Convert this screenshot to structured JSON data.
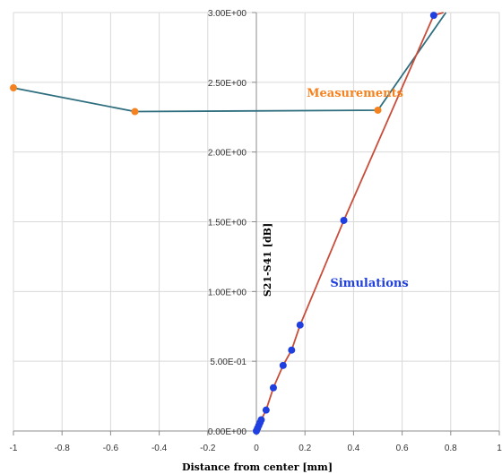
{
  "chart_data": {
    "type": "scatter",
    "xlabel": "Distance from center [mm]",
    "ylabel": "S21-S41 [dB]",
    "xlim": [
      -1,
      1
    ],
    "ylim": [
      0,
      3
    ],
    "x_ticks": [
      {
        "value": -1,
        "label": "-1"
      },
      {
        "value": -0.8,
        "label": "-0.8"
      },
      {
        "value": -0.6,
        "label": "-0.6"
      },
      {
        "value": -0.4,
        "label": "-0.4"
      },
      {
        "value": -0.2,
        "label": "-0.2"
      },
      {
        "value": 0,
        "label": "0"
      },
      {
        "value": 0.2,
        "label": "0.2"
      },
      {
        "value": 0.4,
        "label": "0.4"
      },
      {
        "value": 0.6,
        "label": "0.6"
      },
      {
        "value": 0.8,
        "label": "0.8"
      },
      {
        "value": 1,
        "label": "1"
      }
    ],
    "y_ticks": [
      {
        "value": 0,
        "label": "0.00E+00"
      },
      {
        "value": 0.5,
        "label": "5.00E-01"
      },
      {
        "value": 1.0,
        "label": "1.00E+00"
      },
      {
        "value": 1.5,
        "label": "1.50E+00"
      },
      {
        "value": 2.0,
        "label": "2.00E+00"
      },
      {
        "value": 2.5,
        "label": "2.50E+00"
      },
      {
        "value": 3.0,
        "label": "3.00E+00"
      }
    ],
    "grid": true,
    "series": [
      {
        "name": "Measurements",
        "color": "#f5821f",
        "line_color": "#2e6e7e",
        "x": [
          -1,
          -0.5,
          0.5,
          0.78
        ],
        "y": [
          2.46,
          2.29,
          2.3,
          3.0
        ],
        "marker_at": [
          true,
          true,
          true,
          false
        ]
      },
      {
        "name": "Simulations",
        "color": "#1f3fe0",
        "line_color": "#c94d3a",
        "x": [
          0,
          0.005,
          0.01,
          0.015,
          0.02,
          0.04,
          0.07,
          0.11,
          0.145,
          0.18,
          0.36,
          0.73,
          0.77
        ],
        "y": [
          0.0,
          0.02,
          0.04,
          0.06,
          0.08,
          0.15,
          0.31,
          0.47,
          0.58,
          0.76,
          1.51,
          2.98,
          3.0
        ],
        "marker_at": [
          true,
          true,
          true,
          true,
          true,
          true,
          true,
          true,
          true,
          true,
          true,
          true,
          false
        ]
      }
    ]
  }
}
